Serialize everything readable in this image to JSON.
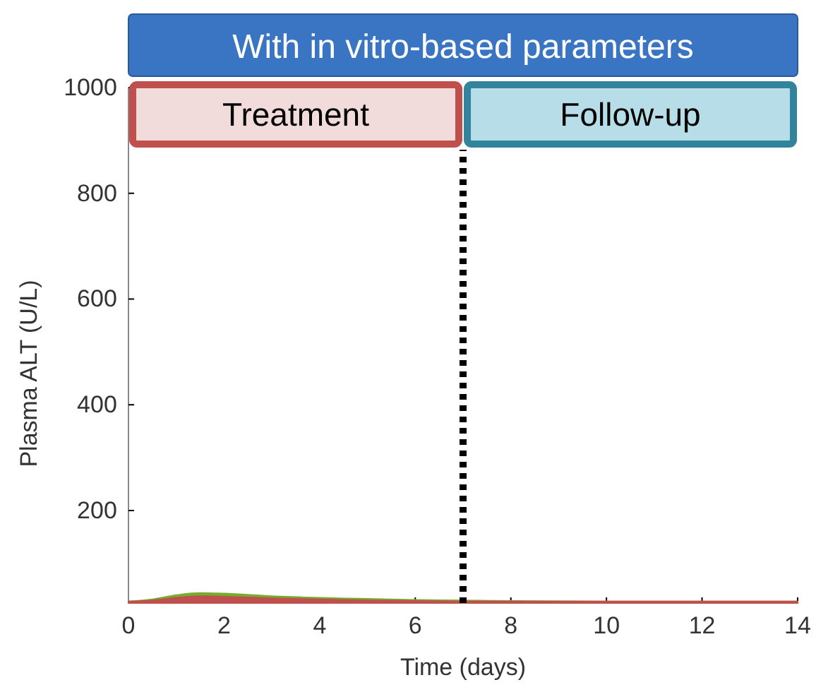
{
  "chart_data": {
    "type": "area",
    "title": "With in vitro-based parameters",
    "xlabel": "Time (days)",
    "ylabel": "Plasma ALT (U/L)",
    "x": [
      0,
      0.5,
      1,
      1.5,
      2,
      3,
      4,
      5,
      6,
      7,
      8,
      10,
      12,
      14
    ],
    "series": [
      {
        "color": "#77ad2f",
        "values": [
          28,
          32,
          40,
          44,
          43,
          38,
          35,
          33,
          31,
          30,
          29,
          28,
          28,
          28
        ]
      },
      {
        "color": "#c0504d",
        "values": [
          28,
          30,
          35,
          38,
          37,
          34,
          32,
          30,
          29,
          28,
          28,
          28,
          28,
          28
        ]
      }
    ],
    "xlim": [
      0,
      14
    ],
    "xticks": [
      0,
      2,
      4,
      6,
      8,
      10,
      12,
      14
    ],
    "ylim": [
      25,
      1000
    ],
    "yticks": [
      200,
      400,
      600,
      800,
      1000
    ],
    "ref_lines": [
      {
        "axis": "x",
        "value": 7,
        "color": "#000000",
        "line_style": "dotted"
      }
    ],
    "annotations": [
      "Treatment",
      "Follow-up"
    ],
    "grid": false
  }
}
